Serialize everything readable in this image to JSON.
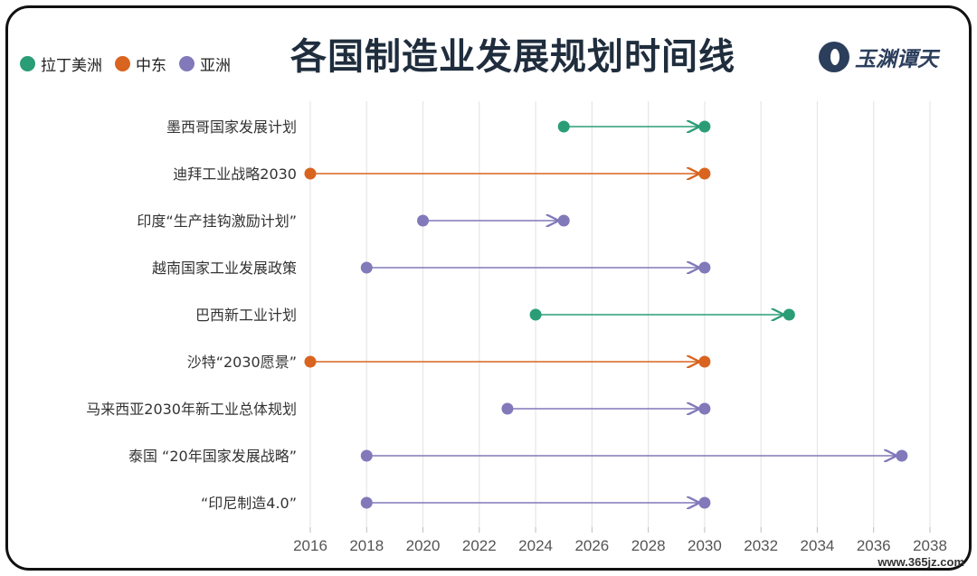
{
  "header": {
    "title": "各国制造业发展规划时间线",
    "logo_text": "玉渊谭天",
    "watermark": "www.365jz.com"
  },
  "legend": [
    {
      "label": "拉丁美洲",
      "color": "#2a9d77"
    },
    {
      "label": "中东",
      "color": "#d8641f"
    },
    {
      "label": "亚洲",
      "color": "#8179b9"
    }
  ],
  "chart_data": {
    "type": "timeline",
    "title": "各国制造业发展规划时间线",
    "x_ticks": [
      2016,
      2018,
      2020,
      2022,
      2024,
      2026,
      2028,
      2030,
      2032,
      2034,
      2036,
      2038
    ],
    "xlim": [
      2016,
      2038
    ],
    "grid": true,
    "legend_position": "top-left",
    "series": [
      {
        "name": "拉丁美洲",
        "color": "#2a9d77"
      },
      {
        "name": "中东",
        "color": "#d8641f"
      },
      {
        "name": "亚洲",
        "color": "#8179b9"
      }
    ],
    "plans": [
      {
        "label": "墨西哥国家发展计划",
        "start": 2025,
        "end": 2030,
        "region": "拉丁美洲"
      },
      {
        "label": "迪拜工业战略2030",
        "start": 2016,
        "end": 2030,
        "region": "中东"
      },
      {
        "label": "印度“生产挂钩激励计划”",
        "start": 2020,
        "end": 2025,
        "region": "亚洲"
      },
      {
        "label": "越南国家工业发展政策",
        "start": 2018,
        "end": 2030,
        "region": "亚洲"
      },
      {
        "label": "巴西新工业计划",
        "start": 2024,
        "end": 2033,
        "region": "拉丁美洲"
      },
      {
        "label": "沙特“2030愿景”",
        "start": 2016,
        "end": 2030,
        "region": "中东"
      },
      {
        "label": "马来西亚2030年新工业总体规划",
        "start": 2023,
        "end": 2030,
        "region": "亚洲"
      },
      {
        "label": "泰国 “20年国家发展战略”",
        "start": 2018,
        "end": 2037,
        "region": "亚洲"
      },
      {
        "label": "“印尼制造4.0”",
        "start": 2018,
        "end": 2030,
        "region": "亚洲"
      }
    ]
  }
}
